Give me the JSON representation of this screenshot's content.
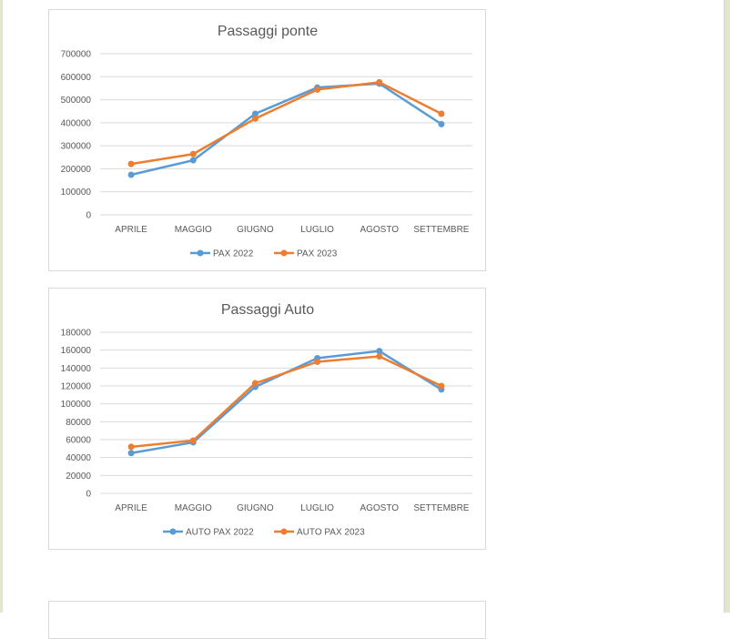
{
  "colors": {
    "series1": "#5b9bd5",
    "series2": "#ed7d31",
    "grid": "#d9d9d9",
    "text": "#595959"
  },
  "chart_data": [
    {
      "type": "line",
      "title": "Passaggi ponte",
      "categories": [
        "APRILE",
        "MAGGIO",
        "GIUGNO",
        "LUGLIO",
        "AGOSTO",
        "SETTEMBRE"
      ],
      "ylim": [
        0,
        700000
      ],
      "yticks": [
        0,
        100000,
        200000,
        300000,
        400000,
        500000,
        600000,
        700000
      ],
      "grid": true,
      "legend": "bottom",
      "series": [
        {
          "name": "PAX 2022",
          "values": [
            174000,
            237000,
            439000,
            553000,
            570000,
            394000
          ]
        },
        {
          "name": "PAX 2023",
          "values": [
            221000,
            264000,
            418000,
            544000,
            576000,
            439000
          ]
        }
      ]
    },
    {
      "type": "line",
      "title": "Passaggi Auto",
      "categories": [
        "APRILE",
        "MAGGIO",
        "GIUGNO",
        "LUGLIO",
        "AGOSTO",
        "SETTEMBRE"
      ],
      "ylim": [
        0,
        180000
      ],
      "yticks": [
        0,
        20000,
        40000,
        60000,
        80000,
        100000,
        120000,
        140000,
        160000,
        180000
      ],
      "grid": true,
      "legend": "bottom",
      "series": [
        {
          "name": "AUTO PAX 2022",
          "values": [
            45000,
            57000,
            119000,
            151000,
            159000,
            116000
          ]
        },
        {
          "name": "AUTO PAX 2023",
          "values": [
            52000,
            59000,
            123000,
            147000,
            153000,
            120000
          ]
        }
      ]
    }
  ]
}
